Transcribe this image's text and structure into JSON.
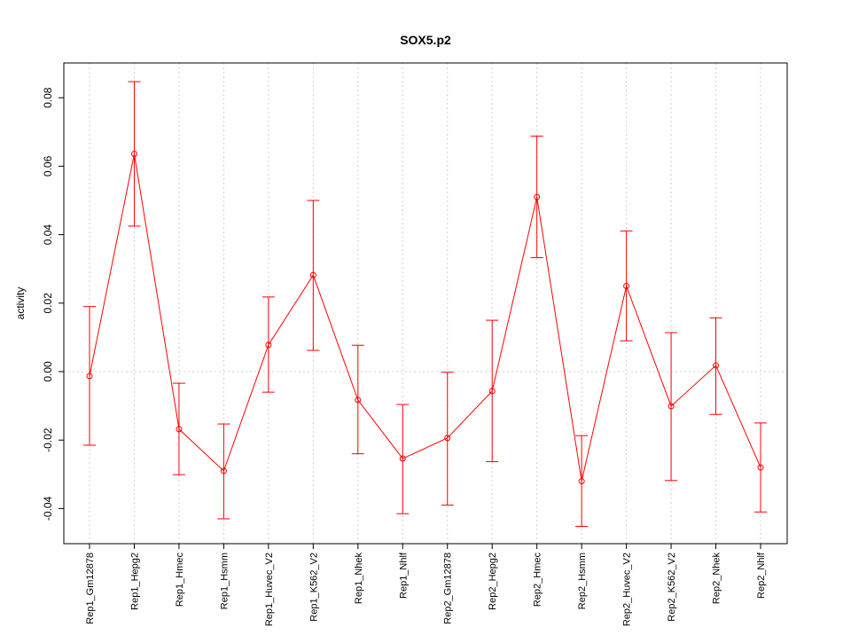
{
  "chart_data": {
    "type": "line",
    "title": "SOX5.p2",
    "xlabel": "",
    "ylabel": "activity",
    "ylim": [
      -0.05,
      0.09
    ],
    "yticks": [
      -0.04,
      -0.02,
      0.0,
      0.02,
      0.04,
      0.06,
      0.08
    ],
    "ytick_labels": [
      "-0.04",
      "-0.02",
      "0.00",
      "0.02",
      "0.04",
      "0.06",
      "0.08"
    ],
    "grid": true,
    "categories": [
      "Rep1_Gm12878",
      "Rep1_Hepg2",
      "Rep1_Hmec",
      "Rep1_Hsmm",
      "Rep1_Huvec_V2",
      "Rep1_K562_V2",
      "Rep1_Nhek",
      "Rep1_Nhlf",
      "Rep2_Gm12878",
      "Rep2_Hepg2",
      "Rep2_Hmec",
      "Rep2_Hsmm",
      "Rep2_Huvec_V2",
      "Rep2_K562_V2",
      "Rep2_Nhek",
      "Rep2_Nhlf"
    ],
    "series": [
      {
        "name": "activity",
        "color": "#ff0000",
        "values": [
          -0.0013,
          0.0636,
          -0.0168,
          -0.029,
          0.0078,
          0.0282,
          -0.0083,
          -0.0254,
          -0.0194,
          -0.0057,
          0.051,
          -0.032,
          0.025,
          -0.0101,
          0.0018,
          -0.028
        ],
        "upper": [
          0.019,
          0.0847,
          -0.0034,
          -0.0153,
          0.0218,
          0.05,
          0.0077,
          -0.0096,
          -0.0002,
          0.015,
          0.0688,
          -0.0187,
          0.0411,
          0.0114,
          0.0157,
          -0.015
        ],
        "lower": [
          -0.0215,
          0.0425,
          -0.0301,
          -0.043,
          -0.006,
          0.0062,
          -0.024,
          -0.0415,
          -0.039,
          -0.0263,
          0.0333,
          -0.0452,
          0.009,
          -0.0318,
          -0.0125,
          -0.041
        ]
      }
    ]
  }
}
